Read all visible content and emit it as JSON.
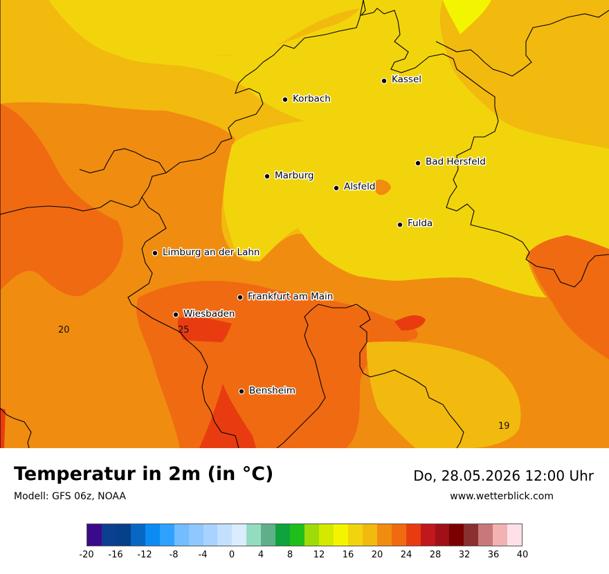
{
  "title": "Temperatur in 2m (in °C)",
  "model": "Modell: GFS 06z, NOAA",
  "datetime": "Do, 28.05.2026 12:00 Uhr",
  "website": "www.wetterblick.com",
  "cities": [
    {
      "name": "Kassel"
    },
    {
      "name": "Korbach"
    },
    {
      "name": "Bad Hersfeld"
    },
    {
      "name": "Marburg"
    },
    {
      "name": "Alsfeld"
    },
    {
      "name": "Fulda"
    },
    {
      "name": "Limburg an der Lahn"
    },
    {
      "name": "Frankfurt am Main"
    },
    {
      "name": "Wiesbaden"
    },
    {
      "name": "Bensheim"
    }
  ],
  "contour_labels": [
    "20",
    "25",
    "19"
  ],
  "legend": {
    "colors": [
      "#3a0a8a",
      "#0b3f8f",
      "#05408a",
      "#0967c4",
      "#0c8cf2",
      "#2fa2ff",
      "#72bcff",
      "#8fc8ff",
      "#a8d2ff",
      "#c4e0ff",
      "#dcecff",
      "#94dcc0",
      "#5fb08a",
      "#0ea33c",
      "#1fbf1a",
      "#9fdb0a",
      "#d3ea00",
      "#f3f500",
      "#f2d40c",
      "#f2b90e",
      "#f08c10",
      "#f06a12",
      "#e83c10",
      "#c0181c",
      "#a01018",
      "#7a0000",
      "#8a3030",
      "#c87878",
      "#f2b2b2",
      "#ffe0e8"
    ],
    "ticks": [
      "-20",
      "-16",
      "-12",
      "-8",
      "-4",
      "0",
      "4",
      "8",
      "12",
      "16",
      "20",
      "24",
      "28",
      "32",
      "36",
      "40"
    ]
  }
}
